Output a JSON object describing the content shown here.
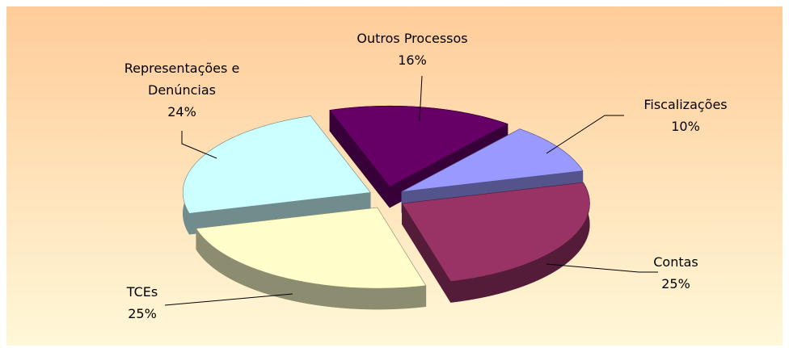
{
  "chart_data": {
    "type": "pie",
    "categories": [
      "Fiscalizações",
      "Contas",
      "TCEs",
      "Representações e Denúncias",
      "Outros Processos"
    ],
    "values": [
      10,
      25,
      25,
      24,
      16
    ],
    "value_labels": [
      "10%",
      "25%",
      "25%",
      "24%",
      "16%"
    ],
    "colors": [
      "#9999ff",
      "#993366",
      "#ffffcc",
      "#ccffff",
      "#660066"
    ]
  }
}
